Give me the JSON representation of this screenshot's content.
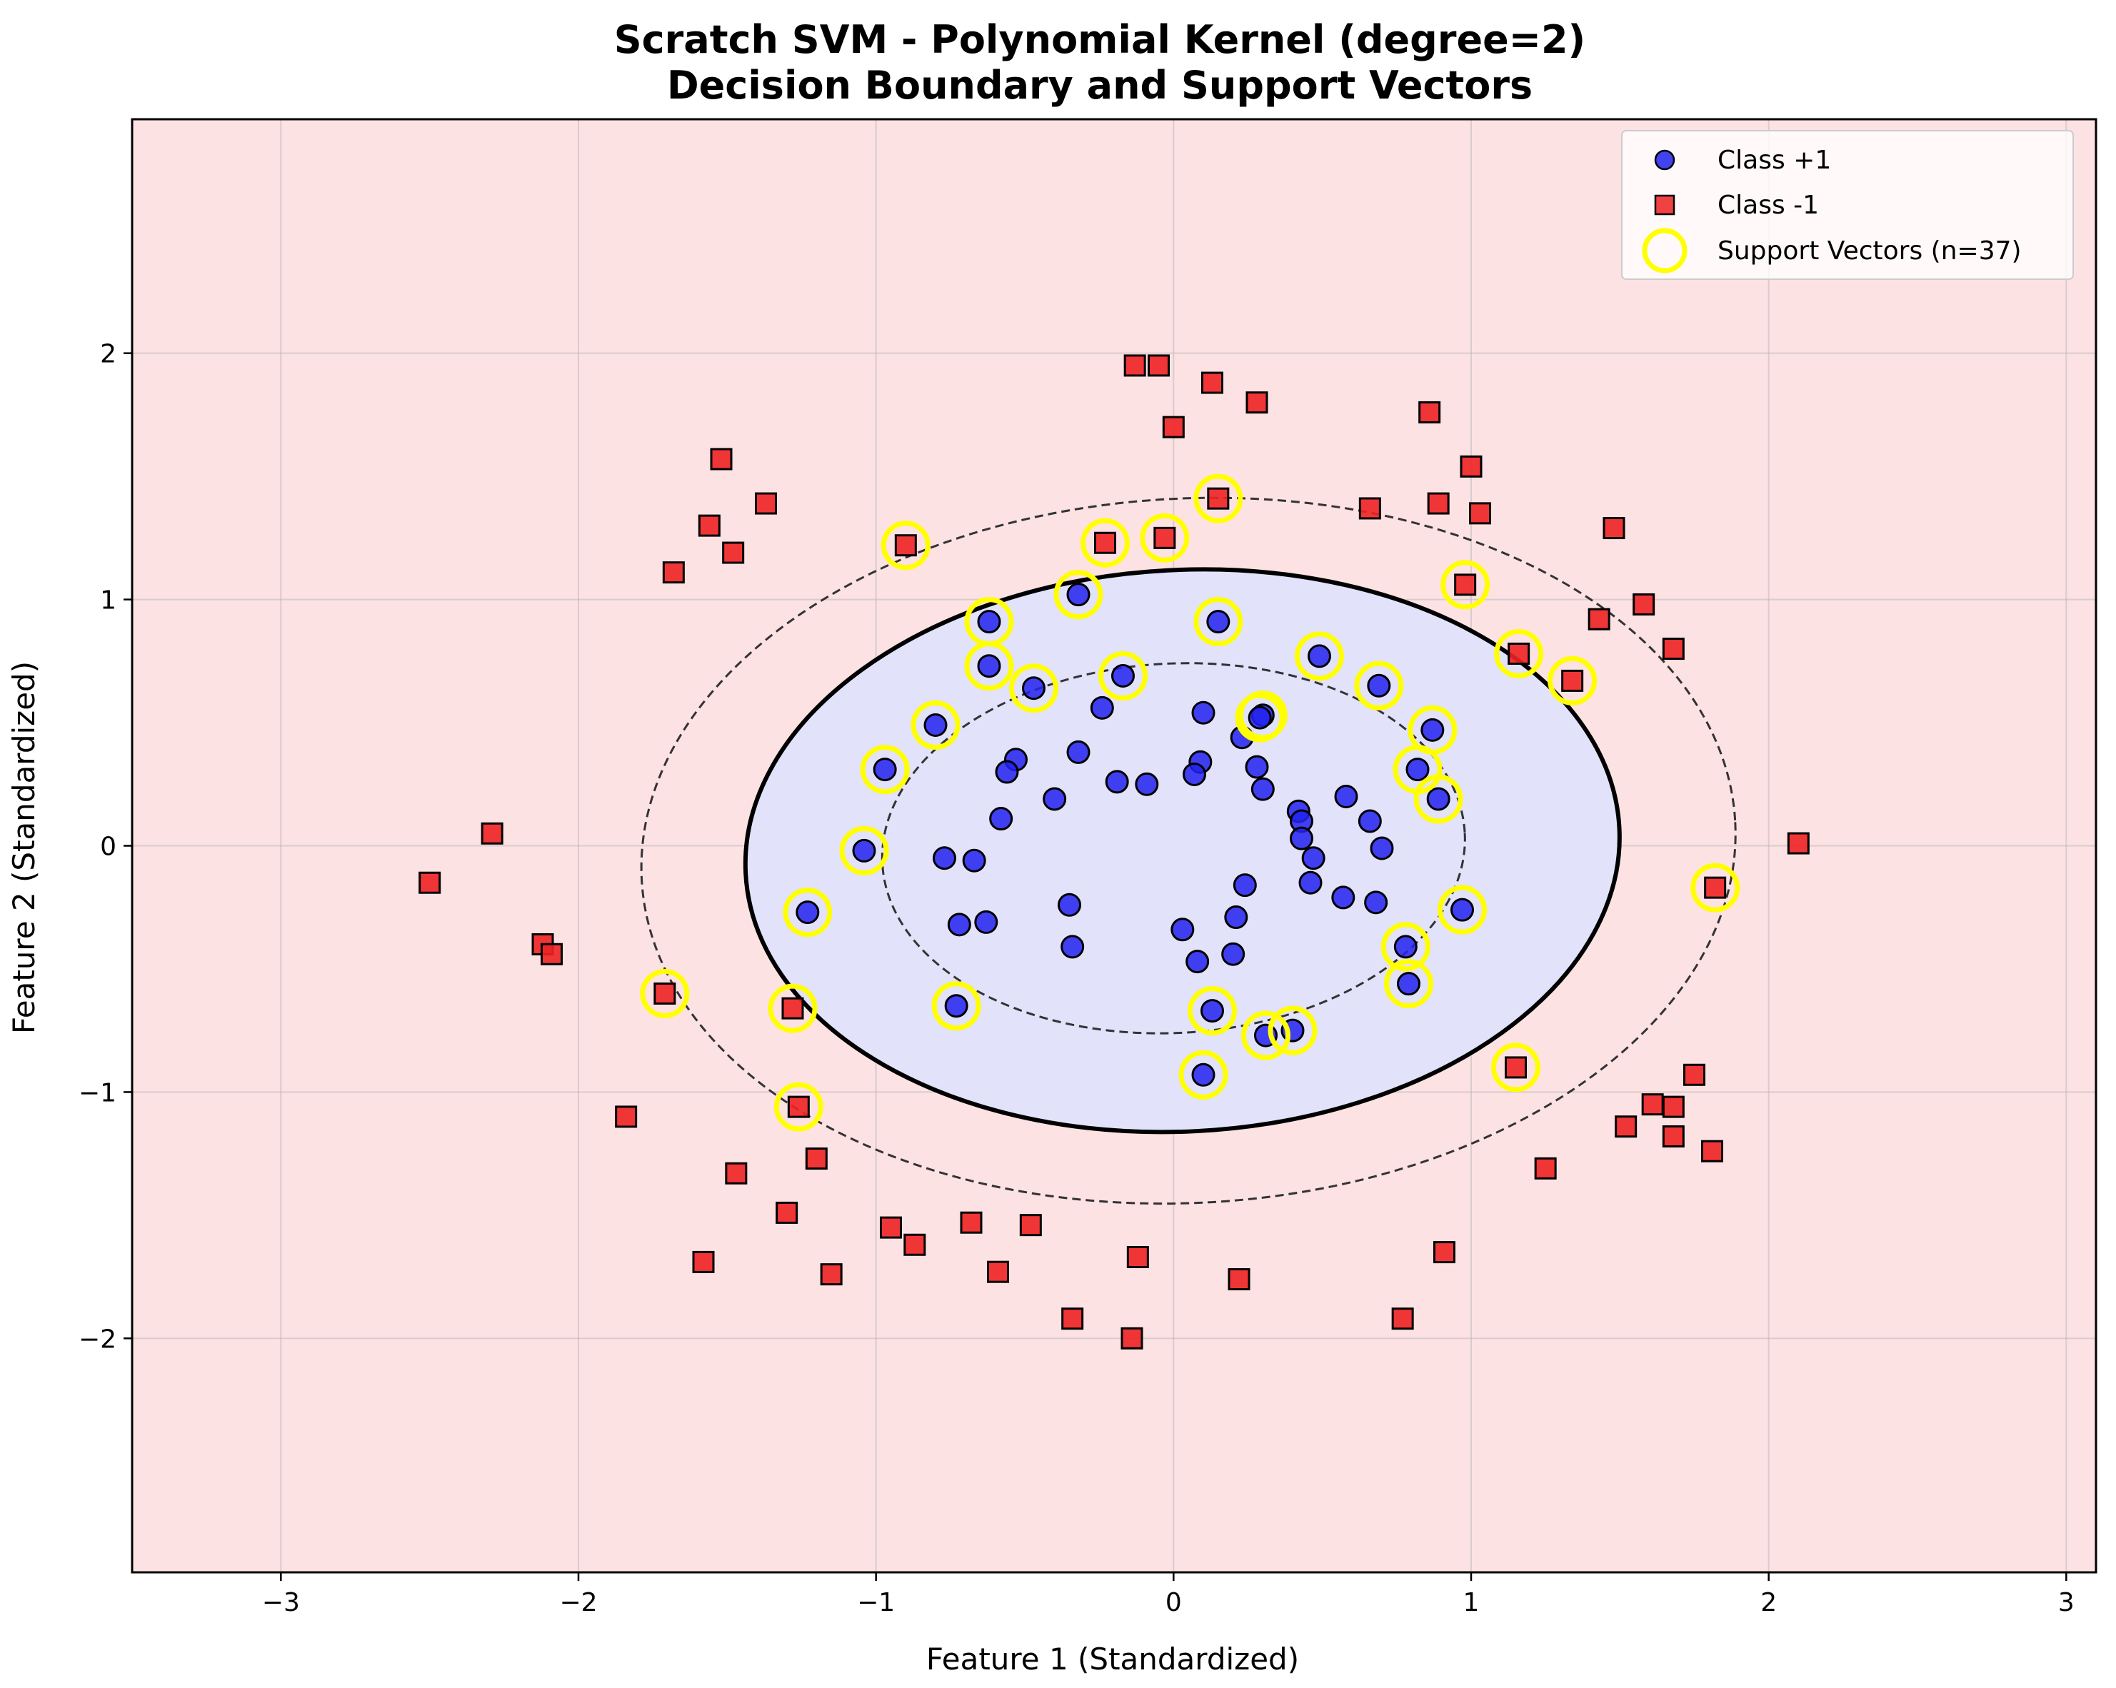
{
  "chart_data": {
    "type": "scatter",
    "title_lines": [
      "Scratch SVM - Polynomial Kernel (degree=2)",
      "Decision Boundary and Support Vectors"
    ],
    "xlabel": "Feature 1 (Standardized)",
    "ylabel": "Feature 2 (Standardized)",
    "xlim": [
      -3.5,
      3.1
    ],
    "ylim": [
      -2.95,
      2.95
    ],
    "xticks": [
      -3,
      -2,
      -1,
      0,
      1,
      2,
      3
    ],
    "yticks": [
      -2,
      -1,
      0,
      1,
      2
    ],
    "xtick_labels": [
      "−3",
      "−2",
      "−1",
      "0",
      "1",
      "2",
      "3"
    ],
    "ytick_labels": [
      "−2",
      "−1",
      "0",
      "1",
      "2"
    ],
    "grid": true,
    "legend_position": "top-right",
    "colors": {
      "class_pos": "#2222ee",
      "class_neg": "#ee2222",
      "support_vector": "#ffff00",
      "region_pos": "#e2e2fb",
      "region_neg": "#fde2e4"
    },
    "decision_boundary": {
      "center": [
        0.03,
        -0.02
      ],
      "rx": 1.47,
      "ry": 1.14,
      "rotation_deg": -3
    },
    "margin_inner": {
      "center": [
        0.0,
        -0.01
      ],
      "rx": 0.98,
      "ry": 0.75,
      "rotation_deg": -3
    },
    "margin_outer": {
      "center": [
        0.05,
        -0.02
      ],
      "rx": 1.84,
      "ry": 1.43,
      "rotation_deg": -3
    },
    "series": [
      {
        "name": "Class +1",
        "marker": "circle",
        "points": [
          [
            -0.32,
            1.02
          ],
          [
            -0.62,
            0.91
          ],
          [
            0.15,
            0.91
          ],
          [
            -0.62,
            0.73
          ],
          [
            -0.47,
            0.64
          ],
          [
            -0.17,
            0.69
          ],
          [
            0.49,
            0.77
          ],
          [
            0.69,
            0.65
          ],
          [
            -0.8,
            0.49
          ],
          [
            -0.24,
            0.56
          ],
          [
            0.1,
            0.54
          ],
          [
            0.3,
            0.53
          ],
          [
            0.29,
            0.52
          ],
          [
            0.23,
            0.44
          ],
          [
            0.87,
            0.47
          ],
          [
            -0.53,
            0.35
          ],
          [
            -0.32,
            0.38
          ],
          [
            0.09,
            0.34
          ],
          [
            -0.56,
            0.3
          ],
          [
            0.28,
            0.32
          ],
          [
            -0.97,
            0.31
          ],
          [
            0.82,
            0.31
          ],
          [
            -0.19,
            0.26
          ],
          [
            -0.09,
            0.25
          ],
          [
            0.07,
            0.29
          ],
          [
            0.3,
            0.23
          ],
          [
            -0.4,
            0.19
          ],
          [
            0.58,
            0.2
          ],
          [
            0.89,
            0.19
          ],
          [
            0.42,
            0.14
          ],
          [
            -0.58,
            0.11
          ],
          [
            0.43,
            0.1
          ],
          [
            0.66,
            0.1
          ],
          [
            0.43,
            0.03
          ],
          [
            0.7,
            -0.01
          ],
          [
            -1.04,
            -0.02
          ],
          [
            -0.77,
            -0.05
          ],
          [
            -0.67,
            -0.06
          ],
          [
            0.47,
            -0.05
          ],
          [
            0.46,
            -0.15
          ],
          [
            0.24,
            -0.16
          ],
          [
            0.57,
            -0.21
          ],
          [
            0.68,
            -0.23
          ],
          [
            -0.35,
            -0.24
          ],
          [
            0.97,
            -0.26
          ],
          [
            -1.23,
            -0.27
          ],
          [
            0.21,
            -0.29
          ],
          [
            -0.63,
            -0.31
          ],
          [
            -0.72,
            -0.32
          ],
          [
            0.03,
            -0.34
          ],
          [
            -0.34,
            -0.41
          ],
          [
            0.78,
            -0.41
          ],
          [
            0.2,
            -0.44
          ],
          [
            0.08,
            -0.47
          ],
          [
            0.79,
            -0.56
          ],
          [
            -0.73,
            -0.65
          ],
          [
            0.13,
            -0.67
          ],
          [
            0.31,
            -0.77
          ],
          [
            0.4,
            -0.75
          ],
          [
            0.1,
            -0.93
          ]
        ]
      },
      {
        "name": "Class -1",
        "marker": "square",
        "points": [
          [
            -0.13,
            1.95
          ],
          [
            -0.05,
            1.95
          ],
          [
            0.13,
            1.88
          ],
          [
            0.28,
            1.8
          ],
          [
            0.86,
            1.76
          ],
          [
            0.0,
            1.7
          ],
          [
            1.0,
            1.54
          ],
          [
            -1.52,
            1.57
          ],
          [
            0.66,
            1.37
          ],
          [
            0.89,
            1.39
          ],
          [
            1.03,
            1.35
          ],
          [
            -1.37,
            1.39
          ],
          [
            -1.56,
            1.3
          ],
          [
            0.15,
            1.41
          ],
          [
            1.48,
            1.29
          ],
          [
            -0.23,
            1.23
          ],
          [
            -0.03,
            1.25
          ],
          [
            -0.9,
            1.22
          ],
          [
            -1.48,
            1.19
          ],
          [
            -1.68,
            1.11
          ],
          [
            0.98,
            1.06
          ],
          [
            1.58,
            0.98
          ],
          [
            1.43,
            0.92
          ],
          [
            1.68,
            0.8
          ],
          [
            1.16,
            0.78
          ],
          [
            1.34,
            0.67
          ],
          [
            2.1,
            0.01
          ],
          [
            -2.29,
            0.05
          ],
          [
            -2.5,
            -0.15
          ],
          [
            1.82,
            -0.17
          ],
          [
            -2.12,
            -0.4
          ],
          [
            -2.09,
            -0.44
          ],
          [
            -1.71,
            -0.6
          ],
          [
            -1.28,
            -0.66
          ],
          [
            1.15,
            -0.9
          ],
          [
            1.75,
            -0.93
          ],
          [
            -1.26,
            -1.06
          ],
          [
            1.61,
            -1.05
          ],
          [
            1.68,
            -1.06
          ],
          [
            -1.84,
            -1.1
          ],
          [
            1.52,
            -1.14
          ],
          [
            1.68,
            -1.18
          ],
          [
            1.81,
            -1.24
          ],
          [
            -1.2,
            -1.27
          ],
          [
            1.25,
            -1.31
          ],
          [
            -1.47,
            -1.33
          ],
          [
            -1.3,
            -1.49
          ],
          [
            -0.68,
            -1.53
          ],
          [
            -0.48,
            -1.54
          ],
          [
            -0.95,
            -1.55
          ],
          [
            -0.87,
            -1.62
          ],
          [
            0.91,
            -1.65
          ],
          [
            -0.12,
            -1.67
          ],
          [
            -1.58,
            -1.69
          ],
          [
            -1.15,
            -1.74
          ],
          [
            -0.59,
            -1.73
          ],
          [
            0.22,
            -1.76
          ],
          [
            -0.34,
            -1.92
          ],
          [
            0.77,
            -1.92
          ],
          [
            -0.14,
            -2.0
          ]
        ]
      },
      {
        "name": "Support Vectors (n=37)",
        "marker": "ring",
        "points": [
          [
            -0.32,
            1.02
          ],
          [
            -0.62,
            0.91
          ],
          [
            0.15,
            0.91
          ],
          [
            -0.62,
            0.73
          ],
          [
            -0.47,
            0.64
          ],
          [
            -0.17,
            0.69
          ],
          [
            0.49,
            0.77
          ],
          [
            0.69,
            0.65
          ],
          [
            -0.8,
            0.49
          ],
          [
            0.3,
            0.53
          ],
          [
            0.29,
            0.52
          ],
          [
            0.87,
            0.47
          ],
          [
            -0.97,
            0.31
          ],
          [
            0.82,
            0.31
          ],
          [
            0.89,
            0.19
          ],
          [
            -1.04,
            -0.02
          ],
          [
            -1.23,
            -0.27
          ],
          [
            0.97,
            -0.26
          ],
          [
            0.78,
            -0.41
          ],
          [
            0.79,
            -0.56
          ],
          [
            -0.73,
            -0.65
          ],
          [
            0.13,
            -0.67
          ],
          [
            0.31,
            -0.77
          ],
          [
            0.4,
            -0.75
          ],
          [
            0.1,
            -0.93
          ],
          [
            0.15,
            1.41
          ],
          [
            -0.23,
            1.23
          ],
          [
            -0.03,
            1.25
          ],
          [
            -0.9,
            1.22
          ],
          [
            0.98,
            1.06
          ],
          [
            1.16,
            0.78
          ],
          [
            1.34,
            0.67
          ],
          [
            1.82,
            -0.17
          ],
          [
            -1.71,
            -0.6
          ],
          [
            -1.28,
            -0.66
          ],
          [
            1.15,
            -0.9
          ],
          [
            -1.26,
            -1.06
          ]
        ]
      }
    ]
  }
}
